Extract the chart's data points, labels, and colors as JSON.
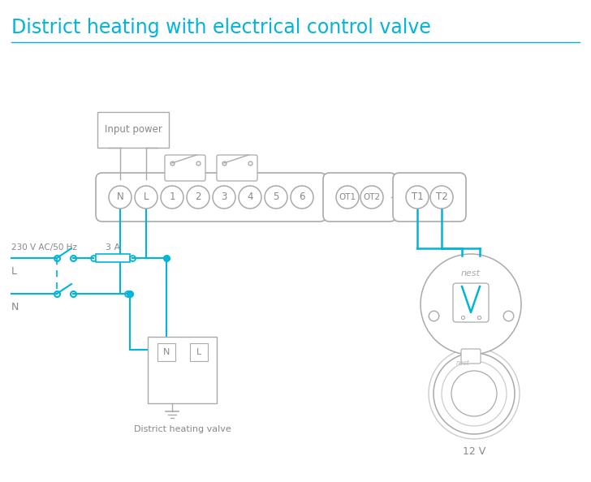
{
  "title": "District heating with electrical control valve",
  "title_color": "#00b5d8",
  "title_fontsize": 17,
  "line_color": "#00b5d8",
  "border_color": "#aaaaaa",
  "text_color": "#888888",
  "bg_color": "#ffffff",
  "terminal_labels": [
    "N",
    "L",
    "1",
    "2",
    "3",
    "4",
    "5",
    "6"
  ],
  "ot_labels": [
    "OT1",
    "OT2"
  ],
  "right_labels": [
    "T1",
    "T2"
  ],
  "fuse_label": "3 A",
  "input_power_label": "Input power",
  "district_valve_label": "District heating valve",
  "nest_label_top": "nest",
  "nest_label_bottom": "nest",
  "twelve_v_label": "12 V",
  "voltage_label": "230 V AC/50 Hz",
  "L_label": "L",
  "N_label": "N",
  "ground_label": "⏚"
}
